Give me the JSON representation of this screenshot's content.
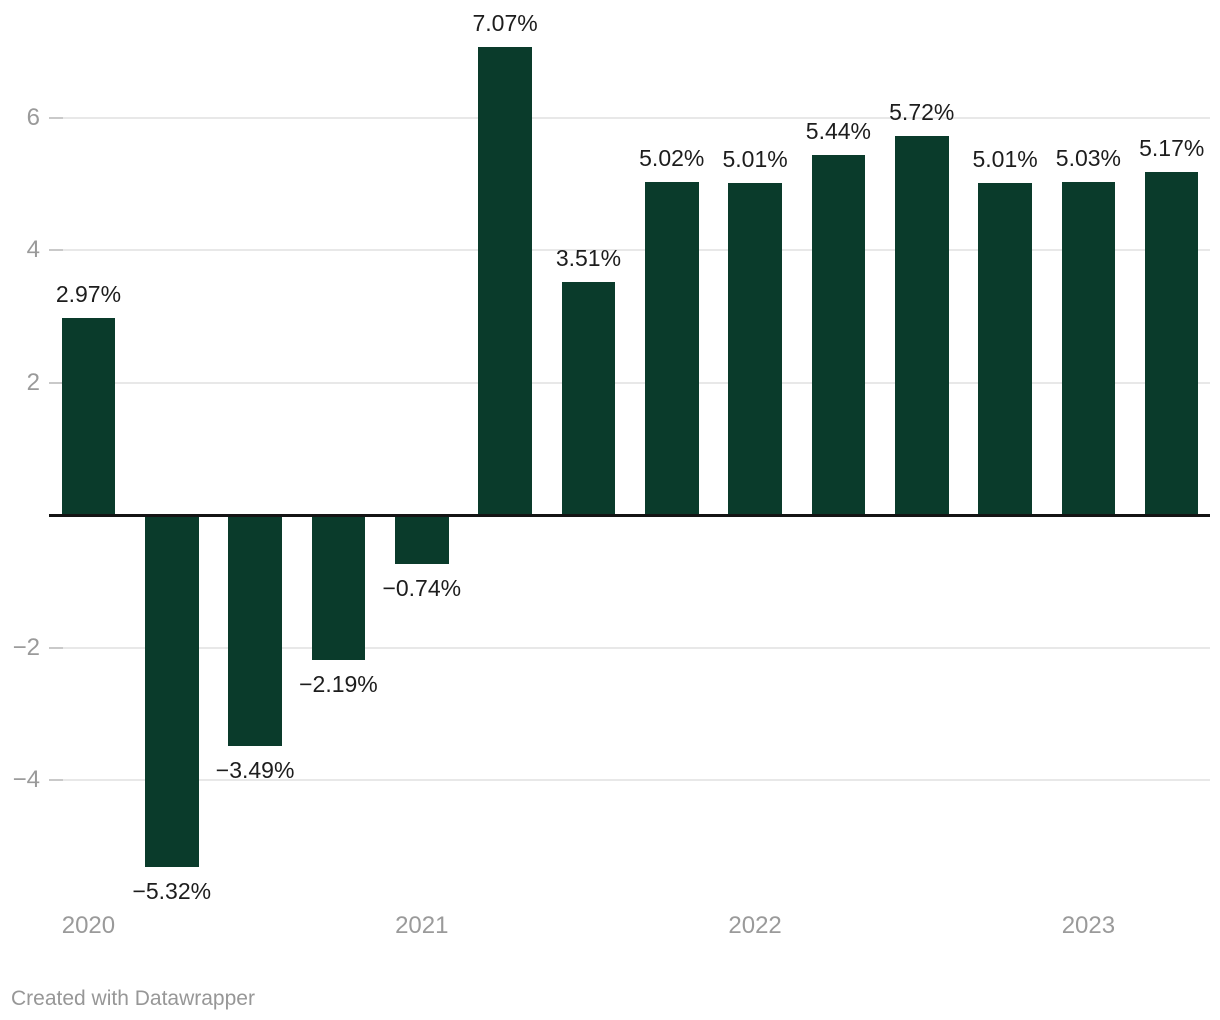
{
  "chart_data": {
    "type": "bar",
    "values": [
      2.97,
      -5.32,
      -3.49,
      -2.19,
      -0.74,
      7.07,
      3.51,
      5.02,
      5.01,
      5.44,
      5.72,
      5.01,
      5.03,
      5.17
    ],
    "value_labels": [
      "2.97%",
      "−5.32%",
      "−3.49%",
      "−2.19%",
      "−0.74%",
      "7.07%",
      "3.51%",
      "5.02%",
      "5.01%",
      "5.44%",
      "5.72%",
      "5.01%",
      "5.03%",
      "5.17%"
    ],
    "x_ticks": [
      {
        "label": "2020",
        "bar_index": 0
      },
      {
        "label": "2021",
        "bar_index": 4
      },
      {
        "label": "2022",
        "bar_index": 8
      },
      {
        "label": "2023",
        "bar_index": 12
      }
    ],
    "y_ticks": [
      {
        "value": 6,
        "label": "6"
      },
      {
        "value": 4,
        "label": "4"
      },
      {
        "value": 2,
        "label": "2"
      },
      {
        "value": -2,
        "label": "−2"
      },
      {
        "value": -4,
        "label": "−4"
      }
    ],
    "baseline_value": 0,
    "ylim": [
      -5.95,
      7.75
    ],
    "grid": true,
    "legend": false,
    "title": "",
    "xlabel": "",
    "ylabel": ""
  },
  "footer": {
    "credit": "Created with Datawrapper"
  },
  "colors": {
    "bar": "#0a3b2b",
    "grid": "#e8e8e8",
    "grid_tick": "#c9c9c9",
    "baseline": "#141414",
    "value_label": "#1d1d1d",
    "axis_label": "#9a9a9a",
    "credit": "#979797",
    "background": "#ffffff"
  }
}
